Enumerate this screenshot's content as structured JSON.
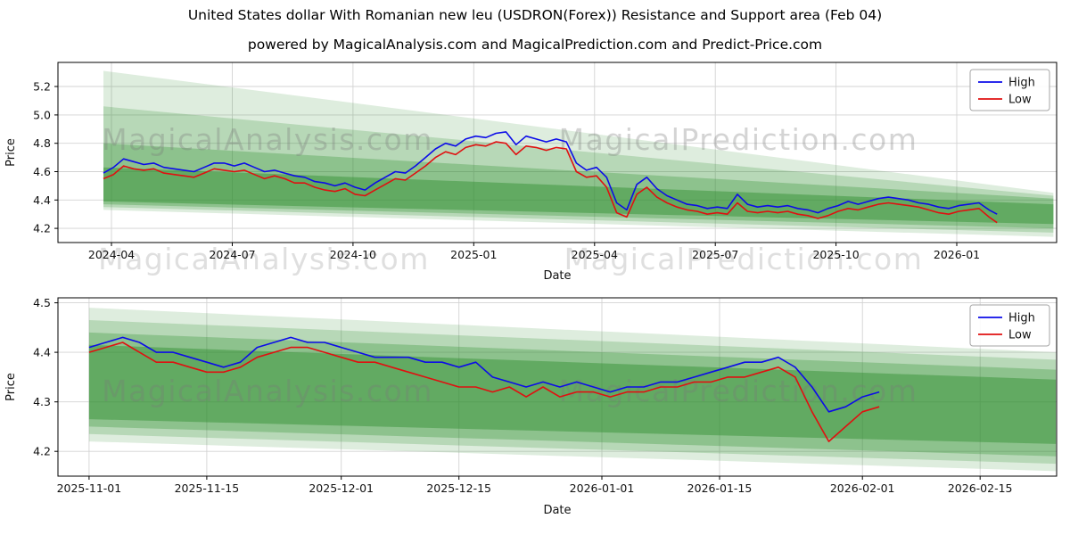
{
  "figure": {
    "title": "United States dollar With Romanian new leu (USDRON(Forex)) Resistance and Support area (Feb 04)",
    "subtitle": "powered by MagicalAnalysis.com and MagicalPrediction.com and Predict-Price.com",
    "watermarks": [
      "MagicalAnalysis.com",
      "MagicalPrediction.com"
    ]
  },
  "colors": {
    "high_line": "#0c0ce8",
    "low_line": "#e01010",
    "band_green": "#2f8f2f",
    "grid": "#d3d3d3",
    "frame": "#000000"
  },
  "chart_data": [
    {
      "type": "line",
      "title": "",
      "xlabel": "Date",
      "ylabel": "Price",
      "grid": true,
      "legend_position": "upper right",
      "legend": [
        {
          "label": "High",
          "color": "#0c0ce8"
        },
        {
          "label": "Low",
          "color": "#e01010"
        }
      ],
      "xlim": [
        1.67,
        26.48
      ],
      "ylim": [
        4.1,
        5.37
      ],
      "x_unit": "months since 2024-01-01",
      "x_ticks": [
        {
          "v": 3,
          "label": "2024-04"
        },
        {
          "v": 6,
          "label": "2024-07"
        },
        {
          "v": 9,
          "label": "2024-10"
        },
        {
          "v": 12,
          "label": "2025-01"
        },
        {
          "v": 15,
          "label": "2025-04"
        },
        {
          "v": 18,
          "label": "2025-07"
        },
        {
          "v": 21,
          "label": "2025-10"
        },
        {
          "v": 24,
          "label": "2026-01"
        }
      ],
      "y_ticks": [
        {
          "v": 4.2,
          "label": "4.2"
        },
        {
          "v": 4.4,
          "label": "4.4"
        },
        {
          "v": 4.6,
          "label": "4.6"
        },
        {
          "v": 4.8,
          "label": "4.8"
        },
        {
          "v": 5.0,
          "label": "5.0"
        },
        {
          "v": 5.2,
          "label": "5.2"
        }
      ],
      "bands": [
        {
          "x": [
            2.8,
            26.4
          ],
          "top": [
            5.31,
            4.45
          ],
          "bottom": [
            4.33,
            4.14
          ],
          "color": "#2f8f2f",
          "alpha": 0.16
        },
        {
          "x": [
            2.8,
            26.4
          ],
          "top": [
            5.06,
            4.43
          ],
          "bottom": [
            4.35,
            4.17
          ],
          "color": "#2f8f2f",
          "alpha": 0.22
        },
        {
          "x": [
            2.8,
            26.4
          ],
          "top": [
            4.8,
            4.41
          ],
          "bottom": [
            4.37,
            4.2
          ],
          "color": "#2f8f2f",
          "alpha": 0.3
        },
        {
          "x": [
            2.8,
            26.4
          ],
          "top": [
            4.63,
            4.37
          ],
          "bottom": [
            4.39,
            4.23
          ],
          "color": "#2f8f2f",
          "alpha": 0.45
        }
      ],
      "x": [
        2.8,
        3.05,
        3.3,
        3.55,
        3.8,
        4.05,
        4.3,
        4.55,
        4.8,
        5.05,
        5.3,
        5.55,
        5.8,
        6.05,
        6.3,
        6.55,
        6.8,
        7.05,
        7.3,
        7.55,
        7.8,
        8.05,
        8.3,
        8.55,
        8.8,
        9.05,
        9.3,
        9.55,
        9.8,
        10.05,
        10.3,
        10.55,
        10.8,
        11.05,
        11.3,
        11.55,
        11.8,
        12.05,
        12.3,
        12.55,
        12.8,
        13.05,
        13.3,
        13.55,
        13.8,
        14.05,
        14.3,
        14.55,
        14.8,
        15.05,
        15.3,
        15.55,
        15.8,
        16.05,
        16.3,
        16.55,
        16.8,
        17.05,
        17.3,
        17.55,
        17.8,
        18.05,
        18.3,
        18.55,
        18.8,
        19.05,
        19.3,
        19.55,
        19.8,
        20.05,
        20.3,
        20.55,
        20.8,
        21.05,
        21.3,
        21.55,
        21.8,
        22.05,
        22.3,
        22.55,
        22.8,
        23.05,
        23.3,
        23.55,
        23.8,
        24.05,
        24.3,
        24.55,
        24.8,
        25.0
      ],
      "series": [
        {
          "name": "High",
          "color": "#0c0ce8",
          "values": [
            4.59,
            4.63,
            4.69,
            4.67,
            4.65,
            4.66,
            4.63,
            4.62,
            4.61,
            4.6,
            4.63,
            4.66,
            4.66,
            4.64,
            4.66,
            4.63,
            4.6,
            4.61,
            4.59,
            4.57,
            4.56,
            4.53,
            4.52,
            4.5,
            4.52,
            4.49,
            4.47,
            4.52,
            4.56,
            4.6,
            4.59,
            4.64,
            4.7,
            4.76,
            4.8,
            4.78,
            4.83,
            4.85,
            4.84,
            4.87,
            4.88,
            4.79,
            4.85,
            4.83,
            4.81,
            4.83,
            4.81,
            4.66,
            4.61,
            4.63,
            4.56,
            4.38,
            4.33,
            4.51,
            4.56,
            4.48,
            4.43,
            4.4,
            4.37,
            4.36,
            4.34,
            4.35,
            4.34,
            4.44,
            4.37,
            4.35,
            4.36,
            4.35,
            4.36,
            4.34,
            4.33,
            4.31,
            4.34,
            4.36,
            4.39,
            4.37,
            4.39,
            4.41,
            4.42,
            4.41,
            4.4,
            4.38,
            4.37,
            4.35,
            4.34,
            4.36,
            4.37,
            4.38,
            4.33,
            4.3
          ]
        },
        {
          "name": "Low",
          "color": "#e01010",
          "values": [
            4.55,
            4.58,
            4.64,
            4.62,
            4.61,
            4.62,
            4.59,
            4.58,
            4.57,
            4.56,
            4.59,
            4.62,
            4.61,
            4.6,
            4.61,
            4.58,
            4.55,
            4.57,
            4.55,
            4.52,
            4.52,
            4.49,
            4.47,
            4.46,
            4.48,
            4.44,
            4.43,
            4.47,
            4.51,
            4.55,
            4.54,
            4.59,
            4.64,
            4.7,
            4.74,
            4.72,
            4.77,
            4.79,
            4.78,
            4.81,
            4.8,
            4.72,
            4.78,
            4.77,
            4.75,
            4.77,
            4.76,
            4.6,
            4.56,
            4.57,
            4.49,
            4.31,
            4.28,
            4.44,
            4.49,
            4.42,
            4.38,
            4.35,
            4.33,
            4.32,
            4.3,
            4.31,
            4.3,
            4.38,
            4.32,
            4.31,
            4.32,
            4.31,
            4.32,
            4.3,
            4.29,
            4.27,
            4.29,
            4.32,
            4.34,
            4.33,
            4.35,
            4.37,
            4.38,
            4.37,
            4.36,
            4.35,
            4.33,
            4.31,
            4.3,
            4.32,
            4.33,
            4.34,
            4.28,
            4.24
          ]
        }
      ]
    },
    {
      "type": "line",
      "title": "",
      "xlabel": "Date",
      "ylabel": "Price",
      "grid": true,
      "legend_position": "upper right",
      "legend": [
        {
          "label": "High",
          "color": "#0c0ce8"
        },
        {
          "label": "Low",
          "color": "#e01010"
        }
      ],
      "xlim": [
        -3.7,
        115.1
      ],
      "ylim": [
        4.15,
        4.51
      ],
      "x_unit": "days since 2025-11-01",
      "x_ticks": [
        {
          "v": 0,
          "label": "2025-11-01"
        },
        {
          "v": 14,
          "label": "2025-11-15"
        },
        {
          "v": 30,
          "label": "2025-12-01"
        },
        {
          "v": 44,
          "label": "2025-12-15"
        },
        {
          "v": 61,
          "label": "2026-01-01"
        },
        {
          "v": 75,
          "label": "2026-01-15"
        },
        {
          "v": 92,
          "label": "2026-02-01"
        },
        {
          "v": 106,
          "label": "2026-02-15"
        }
      ],
      "y_ticks": [
        {
          "v": 4.2,
          "label": "4.2"
        },
        {
          "v": 4.3,
          "label": "4.3"
        },
        {
          "v": 4.4,
          "label": "4.4"
        },
        {
          "v": 4.5,
          "label": "4.5"
        }
      ],
      "bands": [
        {
          "x": [
            0,
            115
          ],
          "top": [
            4.49,
            4.4
          ],
          "bottom": [
            4.22,
            4.16
          ],
          "color": "#2f8f2f",
          "alpha": 0.16
        },
        {
          "x": [
            0,
            115
          ],
          "top": [
            4.465,
            4.385
          ],
          "bottom": [
            4.235,
            4.175
          ],
          "color": "#2f8f2f",
          "alpha": 0.22
        },
        {
          "x": [
            0,
            115
          ],
          "top": [
            4.44,
            4.365
          ],
          "bottom": [
            4.25,
            4.19
          ],
          "color": "#2f8f2f",
          "alpha": 0.3
        },
        {
          "x": [
            0,
            115
          ],
          "top": [
            4.415,
            4.345
          ],
          "bottom": [
            4.265,
            4.215
          ],
          "color": "#2f8f2f",
          "alpha": 0.45
        }
      ],
      "x": [
        0,
        2,
        4,
        6,
        8,
        10,
        12,
        14,
        16,
        18,
        20,
        22,
        24,
        26,
        28,
        30,
        32,
        34,
        36,
        38,
        40,
        42,
        44,
        46,
        48,
        50,
        52,
        54,
        56,
        58,
        60,
        62,
        64,
        66,
        68,
        70,
        72,
        74,
        76,
        78,
        80,
        82,
        84,
        86,
        88,
        90,
        92,
        94
      ],
      "series": [
        {
          "name": "High",
          "color": "#0c0ce8",
          "values": [
            4.41,
            4.42,
            4.43,
            4.42,
            4.4,
            4.4,
            4.39,
            4.38,
            4.37,
            4.38,
            4.41,
            4.42,
            4.43,
            4.42,
            4.42,
            4.41,
            4.4,
            4.39,
            4.39,
            4.39,
            4.38,
            4.38,
            4.37,
            4.38,
            4.35,
            4.34,
            4.33,
            4.34,
            4.33,
            4.34,
            4.33,
            4.32,
            4.33,
            4.33,
            4.34,
            4.34,
            4.35,
            4.36,
            4.37,
            4.38,
            4.38,
            4.39,
            4.37,
            4.33,
            4.28,
            4.29,
            4.31,
            4.32
          ]
        },
        {
          "name": "Low",
          "color": "#e01010",
          "values": [
            4.4,
            4.41,
            4.42,
            4.4,
            4.38,
            4.38,
            4.37,
            4.36,
            4.36,
            4.37,
            4.39,
            4.4,
            4.41,
            4.41,
            4.4,
            4.39,
            4.38,
            4.38,
            4.37,
            4.36,
            4.35,
            4.34,
            4.33,
            4.33,
            4.32,
            4.33,
            4.31,
            4.33,
            4.31,
            4.32,
            4.32,
            4.31,
            4.32,
            4.32,
            4.33,
            4.33,
            4.34,
            4.34,
            4.35,
            4.35,
            4.36,
            4.37,
            4.35,
            4.28,
            4.22,
            4.25,
            4.28,
            4.29
          ]
        }
      ]
    }
  ]
}
